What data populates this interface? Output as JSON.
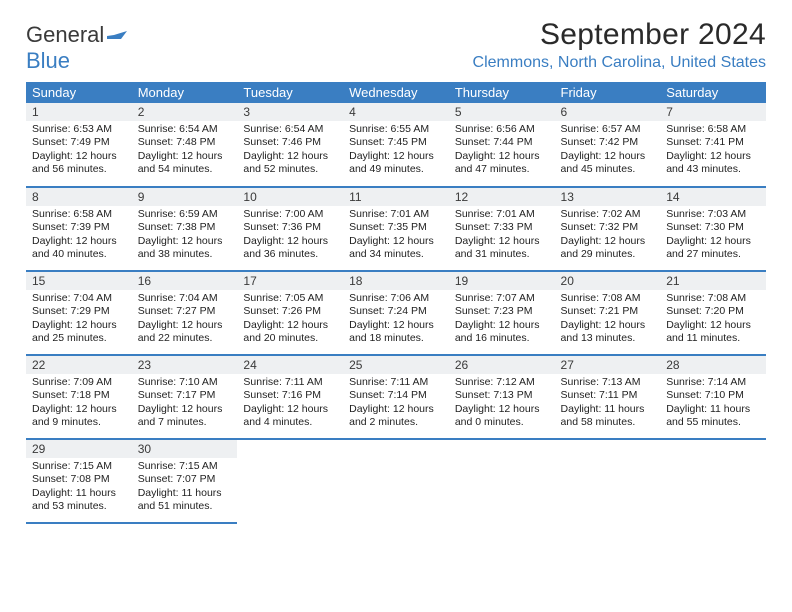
{
  "brand": {
    "general": "General",
    "blue": "Blue",
    "icon_color": "#3a7ec2"
  },
  "title": "September 2024",
  "location": "Clemmons, North Carolina, United States",
  "colors": {
    "header_bg": "#3a7ec2",
    "header_text": "#ffffff",
    "daynum_bg": "#eef0f2",
    "row_border": "#3a7ec2",
    "location_color": "#3a7ec2",
    "body_text": "#202020",
    "background": "#ffffff"
  },
  "typography": {
    "title_fontsize": 30,
    "location_fontsize": 16,
    "dayhead_fontsize": 13,
    "detail_fontsize": 10.5
  },
  "weekdays": [
    "Sunday",
    "Monday",
    "Tuesday",
    "Wednesday",
    "Thursday",
    "Friday",
    "Saturday"
  ],
  "grid": {
    "rows": 5,
    "cols": 7
  },
  "days": [
    {
      "n": "1",
      "sunrise": "Sunrise: 6:53 AM",
      "sunset": "Sunset: 7:49 PM",
      "day": "Daylight: 12 hours and 56 minutes."
    },
    {
      "n": "2",
      "sunrise": "Sunrise: 6:54 AM",
      "sunset": "Sunset: 7:48 PM",
      "day": "Daylight: 12 hours and 54 minutes."
    },
    {
      "n": "3",
      "sunrise": "Sunrise: 6:54 AM",
      "sunset": "Sunset: 7:46 PM",
      "day": "Daylight: 12 hours and 52 minutes."
    },
    {
      "n": "4",
      "sunrise": "Sunrise: 6:55 AM",
      "sunset": "Sunset: 7:45 PM",
      "day": "Daylight: 12 hours and 49 minutes."
    },
    {
      "n": "5",
      "sunrise": "Sunrise: 6:56 AM",
      "sunset": "Sunset: 7:44 PM",
      "day": "Daylight: 12 hours and 47 minutes."
    },
    {
      "n": "6",
      "sunrise": "Sunrise: 6:57 AM",
      "sunset": "Sunset: 7:42 PM",
      "day": "Daylight: 12 hours and 45 minutes."
    },
    {
      "n": "7",
      "sunrise": "Sunrise: 6:58 AM",
      "sunset": "Sunset: 7:41 PM",
      "day": "Daylight: 12 hours and 43 minutes."
    },
    {
      "n": "8",
      "sunrise": "Sunrise: 6:58 AM",
      "sunset": "Sunset: 7:39 PM",
      "day": "Daylight: 12 hours and 40 minutes."
    },
    {
      "n": "9",
      "sunrise": "Sunrise: 6:59 AM",
      "sunset": "Sunset: 7:38 PM",
      "day": "Daylight: 12 hours and 38 minutes."
    },
    {
      "n": "10",
      "sunrise": "Sunrise: 7:00 AM",
      "sunset": "Sunset: 7:36 PM",
      "day": "Daylight: 12 hours and 36 minutes."
    },
    {
      "n": "11",
      "sunrise": "Sunrise: 7:01 AM",
      "sunset": "Sunset: 7:35 PM",
      "day": "Daylight: 12 hours and 34 minutes."
    },
    {
      "n": "12",
      "sunrise": "Sunrise: 7:01 AM",
      "sunset": "Sunset: 7:33 PM",
      "day": "Daylight: 12 hours and 31 minutes."
    },
    {
      "n": "13",
      "sunrise": "Sunrise: 7:02 AM",
      "sunset": "Sunset: 7:32 PM",
      "day": "Daylight: 12 hours and 29 minutes."
    },
    {
      "n": "14",
      "sunrise": "Sunrise: 7:03 AM",
      "sunset": "Sunset: 7:30 PM",
      "day": "Daylight: 12 hours and 27 minutes."
    },
    {
      "n": "15",
      "sunrise": "Sunrise: 7:04 AM",
      "sunset": "Sunset: 7:29 PM",
      "day": "Daylight: 12 hours and 25 minutes."
    },
    {
      "n": "16",
      "sunrise": "Sunrise: 7:04 AM",
      "sunset": "Sunset: 7:27 PM",
      "day": "Daylight: 12 hours and 22 minutes."
    },
    {
      "n": "17",
      "sunrise": "Sunrise: 7:05 AM",
      "sunset": "Sunset: 7:26 PM",
      "day": "Daylight: 12 hours and 20 minutes."
    },
    {
      "n": "18",
      "sunrise": "Sunrise: 7:06 AM",
      "sunset": "Sunset: 7:24 PM",
      "day": "Daylight: 12 hours and 18 minutes."
    },
    {
      "n": "19",
      "sunrise": "Sunrise: 7:07 AM",
      "sunset": "Sunset: 7:23 PM",
      "day": "Daylight: 12 hours and 16 minutes."
    },
    {
      "n": "20",
      "sunrise": "Sunrise: 7:08 AM",
      "sunset": "Sunset: 7:21 PM",
      "day": "Daylight: 12 hours and 13 minutes."
    },
    {
      "n": "21",
      "sunrise": "Sunrise: 7:08 AM",
      "sunset": "Sunset: 7:20 PM",
      "day": "Daylight: 12 hours and 11 minutes."
    },
    {
      "n": "22",
      "sunrise": "Sunrise: 7:09 AM",
      "sunset": "Sunset: 7:18 PM",
      "day": "Daylight: 12 hours and 9 minutes."
    },
    {
      "n": "23",
      "sunrise": "Sunrise: 7:10 AM",
      "sunset": "Sunset: 7:17 PM",
      "day": "Daylight: 12 hours and 7 minutes."
    },
    {
      "n": "24",
      "sunrise": "Sunrise: 7:11 AM",
      "sunset": "Sunset: 7:16 PM",
      "day": "Daylight: 12 hours and 4 minutes."
    },
    {
      "n": "25",
      "sunrise": "Sunrise: 7:11 AM",
      "sunset": "Sunset: 7:14 PM",
      "day": "Daylight: 12 hours and 2 minutes."
    },
    {
      "n": "26",
      "sunrise": "Sunrise: 7:12 AM",
      "sunset": "Sunset: 7:13 PM",
      "day": "Daylight: 12 hours and 0 minutes."
    },
    {
      "n": "27",
      "sunrise": "Sunrise: 7:13 AM",
      "sunset": "Sunset: 7:11 PM",
      "day": "Daylight: 11 hours and 58 minutes."
    },
    {
      "n": "28",
      "sunrise": "Sunrise: 7:14 AM",
      "sunset": "Sunset: 7:10 PM",
      "day": "Daylight: 11 hours and 55 minutes."
    },
    {
      "n": "29",
      "sunrise": "Sunrise: 7:15 AM",
      "sunset": "Sunset: 7:08 PM",
      "day": "Daylight: 11 hours and 53 minutes."
    },
    {
      "n": "30",
      "sunrise": "Sunrise: 7:15 AM",
      "sunset": "Sunset: 7:07 PM",
      "day": "Daylight: 11 hours and 51 minutes."
    }
  ]
}
